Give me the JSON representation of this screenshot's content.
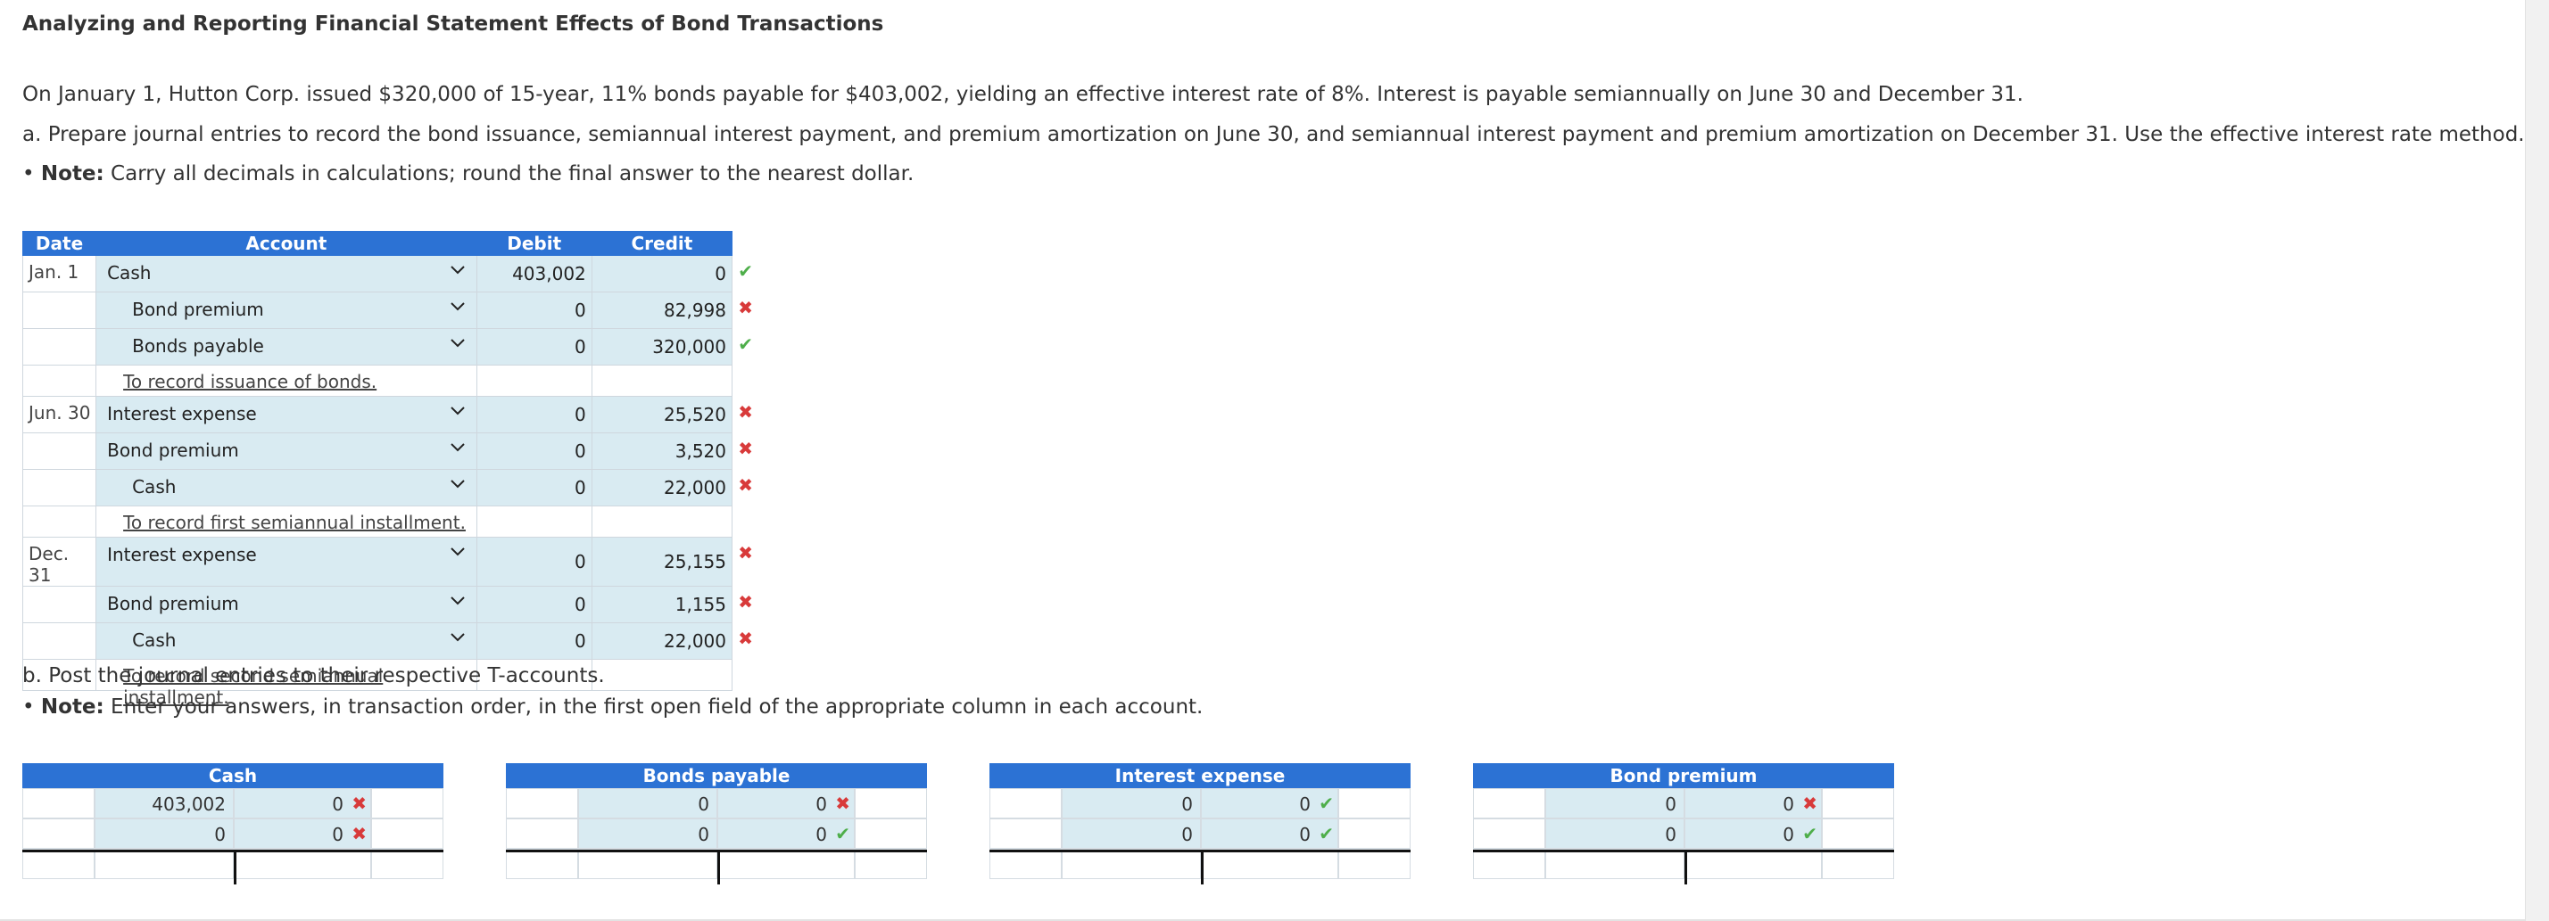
{
  "title": "Analyzing and Reporting Financial Statement Effects of Bond Transactions",
  "intro": "On January 1, Hutton Corp. issued $320,000 of 15-year, 11% bonds payable for $403,002, yielding an effective interest rate of 8%. Interest is payable semiannually on June 30 and December 31.",
  "part_a": "a. Prepare journal entries to record the bond issuance, semiannual interest payment, and premium amortization on June 30, and semiannual interest payment and premium amortization on December 31. Use the effective interest rate method.",
  "note_a": {
    "bullet": "• ",
    "label": "Note:",
    "text": " Carry all decimals in calculations; round the final answer to the nearest dollar."
  },
  "journal": {
    "headers": {
      "date": "Date",
      "account": "Account",
      "debit": "Debit",
      "credit": "Credit"
    },
    "entries": [
      {
        "date": "Jan. 1",
        "lines": [
          {
            "account": "Cash",
            "debit": "403,002",
            "credit": "0",
            "mark": "check"
          },
          {
            "account": "Bond premium",
            "debit": "0",
            "credit": "82,998",
            "mark": "cross"
          },
          {
            "account": "Bonds payable",
            "debit": "0",
            "credit": "320,000",
            "mark": "check"
          }
        ],
        "memo": "To record issuance of bonds."
      },
      {
        "date": "Jun. 30",
        "lines": [
          {
            "account": "Interest expense",
            "debit": "0",
            "credit": "25,520",
            "mark": "cross"
          },
          {
            "account": "Bond premium",
            "debit": "0",
            "credit": "3,520",
            "mark": "cross"
          },
          {
            "account": "Cash",
            "debit": "0",
            "credit": "22,000",
            "mark": "cross"
          }
        ],
        "memo": "To record first semiannual installment."
      },
      {
        "date": "Dec. 31",
        "lines": [
          {
            "account": "Interest expense",
            "debit": "0",
            "credit": "25,155",
            "mark": "cross"
          },
          {
            "account": "Bond premium",
            "debit": "0",
            "credit": "1,155",
            "mark": "cross"
          },
          {
            "account": "Cash",
            "debit": "0",
            "credit": "22,000",
            "mark": "cross"
          }
        ],
        "memo": "To record second semiannual installment."
      }
    ]
  },
  "part_b": "b. Post the journal entries to their respective T-accounts.",
  "note_b": {
    "bullet": "• ",
    "label": "Note:",
    "text": "  Enter your answers, in transaction order, in the first open field of the appropriate column in each account."
  },
  "t_accounts": [
    {
      "name": "Cash",
      "rows": [
        {
          "debit": "403,002",
          "debit_mark": "check",
          "credit": "0",
          "credit_mark": "cross"
        },
        {
          "debit": "0",
          "debit_mark": "check",
          "credit": "0",
          "credit_mark": "cross"
        }
      ]
    },
    {
      "name": "Bonds payable",
      "rows": [
        {
          "debit": "0",
          "debit_mark": "check",
          "credit": "0",
          "credit_mark": "cross"
        },
        {
          "debit": "0",
          "debit_mark": "check",
          "credit": "0",
          "credit_mark": "check"
        }
      ]
    },
    {
      "name": "Interest expense",
      "rows": [
        {
          "debit": "0",
          "debit_mark": "cross",
          "credit": "0",
          "credit_mark": "check"
        },
        {
          "debit": "0",
          "debit_mark": "cross",
          "credit": "0",
          "credit_mark": "check"
        }
      ]
    },
    {
      "name": "Bond premium",
      "rows": [
        {
          "debit": "0",
          "debit_mark": "cross",
          "credit": "0",
          "credit_mark": "cross"
        },
        {
          "debit": "0",
          "debit_mark": "cross",
          "credit": "0",
          "credit_mark": "check"
        }
      ]
    }
  ],
  "icons": {
    "check": "✔",
    "cross": "✖",
    "chevron": "chevron-down-icon"
  },
  "colors": {
    "header": "#2c72d4",
    "input_bg": "#d9ebf2",
    "correct": "#4eae4a",
    "incorrect": "#d83a3a"
  }
}
